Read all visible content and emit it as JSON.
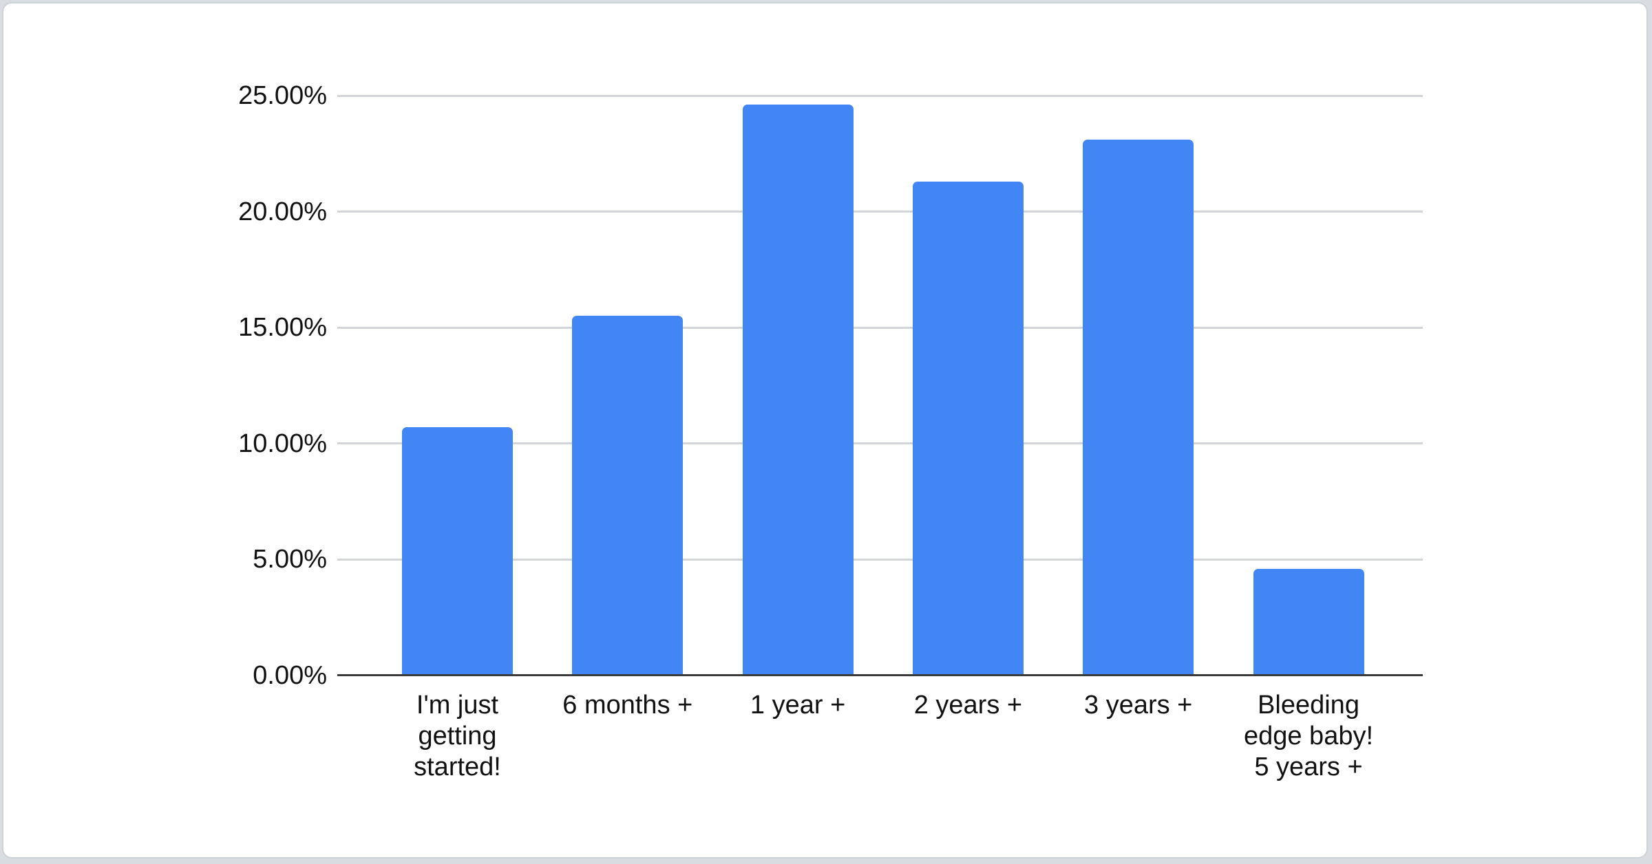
{
  "chart_data": {
    "type": "bar",
    "title": "",
    "xlabel": "",
    "ylabel": "",
    "legend": "none",
    "grid": true,
    "ylim": [
      0,
      25
    ],
    "y_tick_step": 5,
    "y_tick_labels": [
      "0.00%",
      "5.00%",
      "10.00%",
      "15.00%",
      "20.00%",
      "25.00%"
    ],
    "unit": "%",
    "bar_color": "#4285f4",
    "axis_line_color": "#3b3b3b",
    "gridline_color": "#d2d4d7",
    "label_color": "#111111",
    "categories": [
      "I'm just getting started!",
      "6 months +",
      "1 year +",
      "2 years +",
      "3 years +",
      "Bleeding edge baby! 5 years +"
    ],
    "category_display_lines": [
      [
        "I'm just",
        "getting",
        "started!"
      ],
      [
        "6 months +"
      ],
      [
        "1 year +"
      ],
      [
        "2 years +"
      ],
      [
        "3 years +"
      ],
      [
        "Bleeding",
        "edge baby!",
        "5 years +"
      ]
    ],
    "values": [
      10.7,
      15.5,
      24.6,
      21.3,
      23.1,
      4.6
    ]
  }
}
